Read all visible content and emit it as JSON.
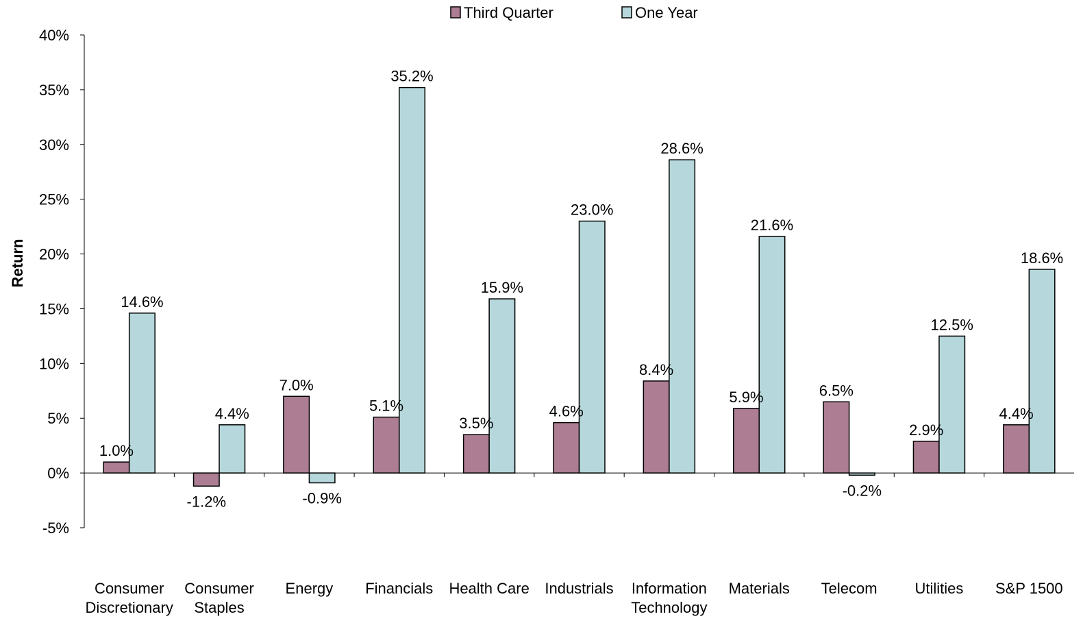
{
  "chart_data": {
    "type": "bar",
    "title": "",
    "xlabel": "",
    "ylabel": "Return",
    "ylim": [
      -5,
      40
    ],
    "ytick_step": 5,
    "value_suffix": "%",
    "grid": false,
    "legend_position": "top-center",
    "categories": [
      [
        "Consumer",
        "Discretionary"
      ],
      [
        "Consumer",
        "Staples"
      ],
      [
        "Energy"
      ],
      [
        "Financials"
      ],
      [
        "Health Care"
      ],
      [
        "Industrials"
      ],
      [
        "Information",
        "Technology"
      ],
      [
        "Materials"
      ],
      [
        "Telecom"
      ],
      [
        "Utilities"
      ],
      [
        "S&P 1500"
      ]
    ],
    "series": [
      {
        "name": "Third Quarter",
        "color": "#ac7d93",
        "values": [
          1.0,
          -1.2,
          7.0,
          5.1,
          3.5,
          4.6,
          8.4,
          5.9,
          6.5,
          2.9,
          4.4
        ]
      },
      {
        "name": "One Year",
        "color": "#b6d8dc",
        "values": [
          14.6,
          4.4,
          -0.9,
          35.2,
          15.9,
          23.0,
          28.6,
          21.6,
          -0.2,
          12.5,
          18.6
        ]
      }
    ]
  }
}
